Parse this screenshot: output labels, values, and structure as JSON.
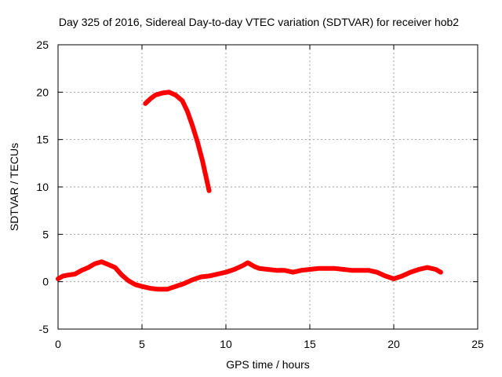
{
  "chart_data": {
    "type": "line",
    "title": "Day 325 of 2016, Sidereal Day-to-day VTEC variation (SDTVAR) for receiver hob2",
    "xlabel": "GPS time / hours",
    "ylabel": "SDTVAR / TECUs",
    "xlim": [
      0,
      25
    ],
    "ylim": [
      -5,
      25
    ],
    "xticks": [
      0,
      5,
      10,
      15,
      20,
      25
    ],
    "yticks": [
      -5,
      0,
      5,
      10,
      15,
      20,
      25
    ],
    "grid": true,
    "series": [
      {
        "name": "SDTVAR",
        "color": "#ff0000",
        "segments": [
          [
            [
              0.0,
              0.3
            ],
            [
              0.3,
              0.6
            ],
            [
              0.6,
              0.7
            ],
            [
              1.0,
              0.8
            ],
            [
              1.4,
              1.2
            ],
            [
              1.8,
              1.5
            ],
            [
              2.2,
              1.9
            ],
            [
              2.6,
              2.1
            ],
            [
              3.0,
              1.8
            ],
            [
              3.4,
              1.5
            ],
            [
              3.8,
              0.7
            ],
            [
              4.2,
              0.1
            ],
            [
              4.6,
              -0.3
            ],
            [
              5.0,
              -0.5
            ],
            [
              5.5,
              -0.7
            ],
            [
              6.0,
              -0.8
            ],
            [
              6.5,
              -0.8
            ],
            [
              7.0,
              -0.5
            ],
            [
              7.5,
              -0.2
            ],
            [
              8.0,
              0.2
            ],
            [
              8.5,
              0.5
            ],
            [
              9.0,
              0.6
            ],
            [
              9.5,
              0.8
            ],
            [
              10.0,
              1.0
            ],
            [
              10.5,
              1.3
            ],
            [
              11.0,
              1.7
            ],
            [
              11.3,
              2.0
            ],
            [
              11.7,
              1.6
            ],
            [
              12.0,
              1.4
            ],
            [
              12.5,
              1.3
            ],
            [
              13.0,
              1.2
            ],
            [
              13.5,
              1.2
            ],
            [
              14.0,
              1.0
            ],
            [
              14.5,
              1.2
            ],
            [
              15.0,
              1.3
            ],
            [
              15.5,
              1.4
            ],
            [
              16.0,
              1.4
            ],
            [
              16.5,
              1.4
            ],
            [
              17.0,
              1.3
            ],
            [
              17.5,
              1.2
            ],
            [
              18.0,
              1.2
            ],
            [
              18.5,
              1.2
            ],
            [
              19.0,
              1.0
            ],
            [
              19.5,
              0.6
            ],
            [
              20.0,
              0.3
            ],
            [
              20.5,
              0.6
            ],
            [
              21.0,
              1.0
            ],
            [
              21.5,
              1.3
            ],
            [
              22.0,
              1.5
            ],
            [
              22.5,
              1.3
            ],
            [
              22.8,
              1.0
            ]
          ],
          [
            [
              5.2,
              18.8
            ],
            [
              5.5,
              19.3
            ],
            [
              5.8,
              19.7
            ],
            [
              6.2,
              19.9
            ],
            [
              6.6,
              20.0
            ],
            [
              7.0,
              19.7
            ],
            [
              7.4,
              19.1
            ],
            [
              7.7,
              18.0
            ],
            [
              8.0,
              16.5
            ],
            [
              8.3,
              14.8
            ],
            [
              8.6,
              12.8
            ],
            [
              8.8,
              11.2
            ],
            [
              9.0,
              9.6
            ]
          ]
        ]
      }
    ]
  }
}
